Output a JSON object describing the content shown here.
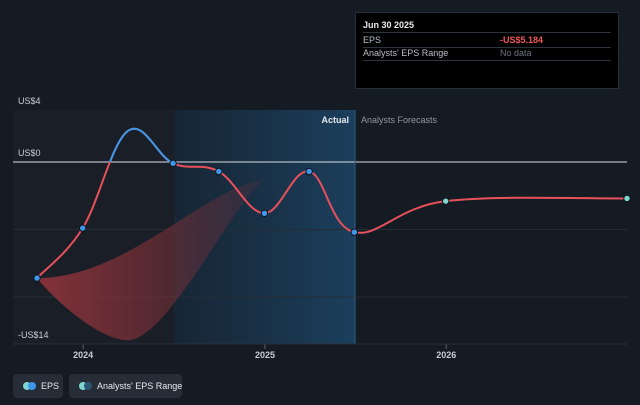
{
  "chart_data": {
    "type": "line",
    "y_axis": {
      "label_top": "US$4",
      "label_zero": "US$0",
      "label_bottom": "-US$14",
      "ylim": [
        -14,
        4
      ]
    },
    "x_ticks": [
      "2024",
      "2025",
      "2026"
    ],
    "region_labels": {
      "actual": "Actual",
      "forecast": "Analysts Forecasts"
    },
    "series": [
      {
        "name": "EPS",
        "points": [
          {
            "date": "2023-09-30",
            "eps": -8.6
          },
          {
            "date": "2023-12-31",
            "eps": -4.9
          },
          {
            "date": "2024-03-31",
            "eps": 2.3
          },
          {
            "date": "2024-06-30",
            "eps": -0.1
          },
          {
            "date": "2024-09-30",
            "eps": -0.7
          },
          {
            "date": "2024-12-31",
            "eps": -3.8
          },
          {
            "date": "2025-03-31",
            "eps": -0.7
          },
          {
            "date": "2025-06-30",
            "eps": -5.2
          },
          {
            "date": "2025-12-31",
            "eps": -2.9
          },
          {
            "date": "2026-12-31",
            "eps": -2.7
          }
        ]
      }
    ],
    "range_band": {
      "name": "Analysts' EPS Range",
      "upper": [
        {
          "date": "2023-09-30",
          "eps": -8.6
        },
        {
          "date": "2024-12-31",
          "eps": -1.3
        }
      ],
      "lower": [
        {
          "date": "2023-09-30",
          "eps": -8.6
        },
        {
          "date": "2024-03-31",
          "eps": -13.2
        },
        {
          "date": "2024-12-31",
          "eps": -1.3
        }
      ]
    },
    "colors": {
      "eps_line": "#e8505b",
      "eps_highlight": "#3d97ea",
      "band": "#7a2e35",
      "forecast_dot": "#7ed6d1"
    }
  },
  "tooltip": {
    "title": "Jun 30 2025",
    "rows": [
      {
        "key": "EPS",
        "value": "-US$5.184"
      },
      {
        "key": "Analysts' EPS Range",
        "value": "No data"
      }
    ]
  },
  "legend": [
    {
      "label": "EPS"
    },
    {
      "label": "Analysts' EPS Range"
    }
  ]
}
